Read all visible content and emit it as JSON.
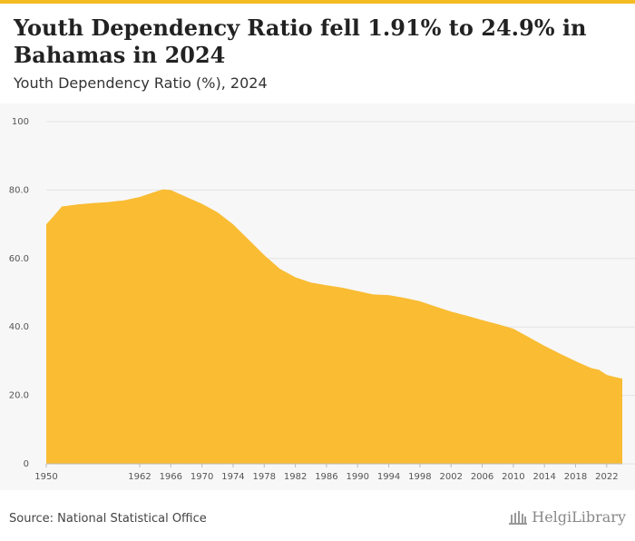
{
  "header": {
    "title": "Youth Dependency Ratio fell 1.91% to 24.9% in Bahamas in 2024",
    "subtitle": "Youth Dependency Ratio (%), 2024"
  },
  "footer": {
    "source": "Source: National Statistical Office",
    "logo_text": "HelgiLibrary"
  },
  "colors": {
    "area_fill": "#f9bc33",
    "accent_bar": "#f5bb23",
    "grid": "#e3e3e3"
  },
  "chart_data": {
    "type": "area",
    "title": "Youth Dependency Ratio fell 1.91% to 24.9% in Bahamas in 2024",
    "subtitle": "Youth Dependency Ratio (%), 2024",
    "xlabel": "",
    "ylabel": "",
    "xlim": [
      1950,
      2024
    ],
    "ylim": [
      0,
      100
    ],
    "grid": true,
    "y_ticks": [
      "0",
      "20.0",
      "40.0",
      "60.0",
      "80.0",
      "100"
    ],
    "x_ticks": [
      "1950",
      "1962",
      "1966",
      "1970",
      "1974",
      "1978",
      "1982",
      "1986",
      "1990",
      "1994",
      "1998",
      "2002",
      "2006",
      "2010",
      "2014",
      "2018",
      "2022"
    ],
    "series": [
      {
        "values": [
          [
            1950,
            70.0
          ],
          [
            1951,
            72.5
          ],
          [
            1952,
            75.2
          ],
          [
            1954,
            75.8
          ],
          [
            1956,
            76.2
          ],
          [
            1958,
            76.5
          ],
          [
            1960,
            77.0
          ],
          [
            1962,
            78.0
          ],
          [
            1964,
            79.5
          ],
          [
            1965,
            80.2
          ],
          [
            1966,
            80.0
          ],
          [
            1968,
            78.0
          ],
          [
            1970,
            76.0
          ],
          [
            1972,
            73.5
          ],
          [
            1974,
            70.0
          ],
          [
            1976,
            65.5
          ],
          [
            1978,
            61.0
          ],
          [
            1980,
            57.0
          ],
          [
            1982,
            54.5
          ],
          [
            1984,
            53.0
          ],
          [
            1986,
            52.2
          ],
          [
            1988,
            51.5
          ],
          [
            1990,
            50.5
          ],
          [
            1992,
            49.5
          ],
          [
            1994,
            49.3
          ],
          [
            1996,
            48.5
          ],
          [
            1998,
            47.5
          ],
          [
            2000,
            46.0
          ],
          [
            2002,
            44.5
          ],
          [
            2004,
            43.3
          ],
          [
            2006,
            42.0
          ],
          [
            2008,
            40.8
          ],
          [
            2010,
            39.5
          ],
          [
            2012,
            37.0
          ],
          [
            2014,
            34.5
          ],
          [
            2016,
            32.2
          ],
          [
            2018,
            30.0
          ],
          [
            2020,
            28.0
          ],
          [
            2021,
            27.5
          ],
          [
            2022,
            26.0
          ],
          [
            2023,
            25.4
          ],
          [
            2024,
            24.9
          ]
        ]
      }
    ]
  }
}
